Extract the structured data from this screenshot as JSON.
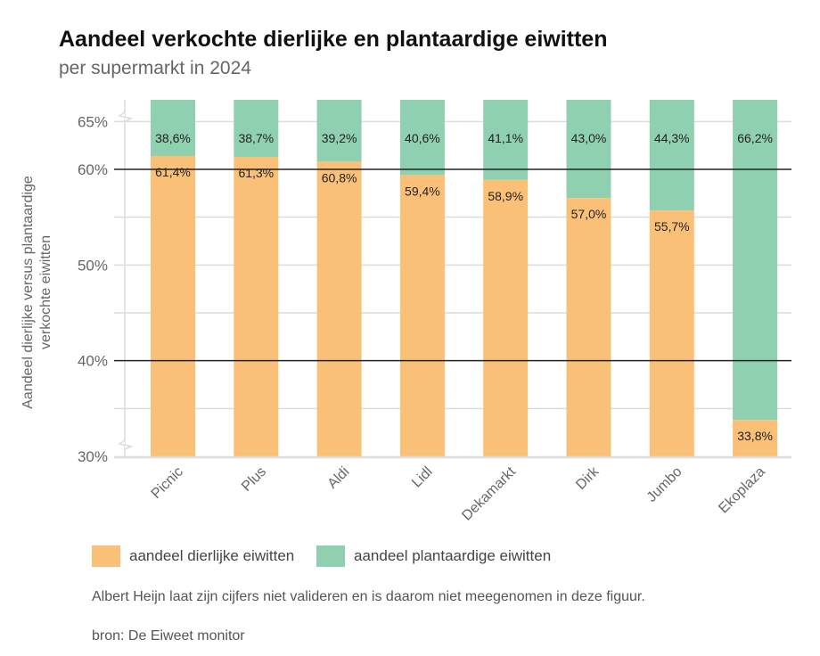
{
  "title": "Aandeel verkochte dierlijke en plantaardige eiwitten",
  "subtitle": "per supermarkt in 2024",
  "note": "Albert Heijn laat zijn cijfers niet valideren en is daarom niet meegenomen in deze figuur.",
  "source": "bron: De Eiweet monitor",
  "chart_data": {
    "type": "bar",
    "stacked": true,
    "ylabel": "Aandeel dierlijke versus plantaardige verkochte eiwitten",
    "ylim": [
      30,
      67
    ],
    "axis_break": true,
    "yticks": [
      30,
      40,
      50,
      60,
      65
    ],
    "ytick_labels": [
      "30%",
      "40%",
      "50%",
      "60%",
      "65%"
    ],
    "grid": true,
    "categories": [
      "Picnic",
      "Plus",
      "Aldi",
      "Lidl",
      "Dekamarkt",
      "Dirk",
      "Jumbo",
      "Ekoplaza"
    ],
    "series": [
      {
        "name": "aandeel dierlijke eiwitten",
        "color": "#fbc077",
        "values": [
          61.4,
          61.3,
          60.8,
          59.4,
          58.9,
          57.0,
          55.7,
          33.8
        ],
        "labels": [
          "61,4%",
          "61,3%",
          "60,8%",
          "59,4%",
          "58,9%",
          "57,0%",
          "55,7%",
          "33,8%"
        ]
      },
      {
        "name": "aandeel plantaardige eiwitten",
        "color": "#8fd0b0",
        "values": [
          38.6,
          38.7,
          39.2,
          40.6,
          41.1,
          43.0,
          44.3,
          66.2
        ],
        "labels": [
          "38,6%",
          "38,7%",
          "39,2%",
          "40,6%",
          "41,1%",
          "43,0%",
          "44,3%",
          "66,2%"
        ]
      }
    ],
    "legend": "bottom"
  }
}
